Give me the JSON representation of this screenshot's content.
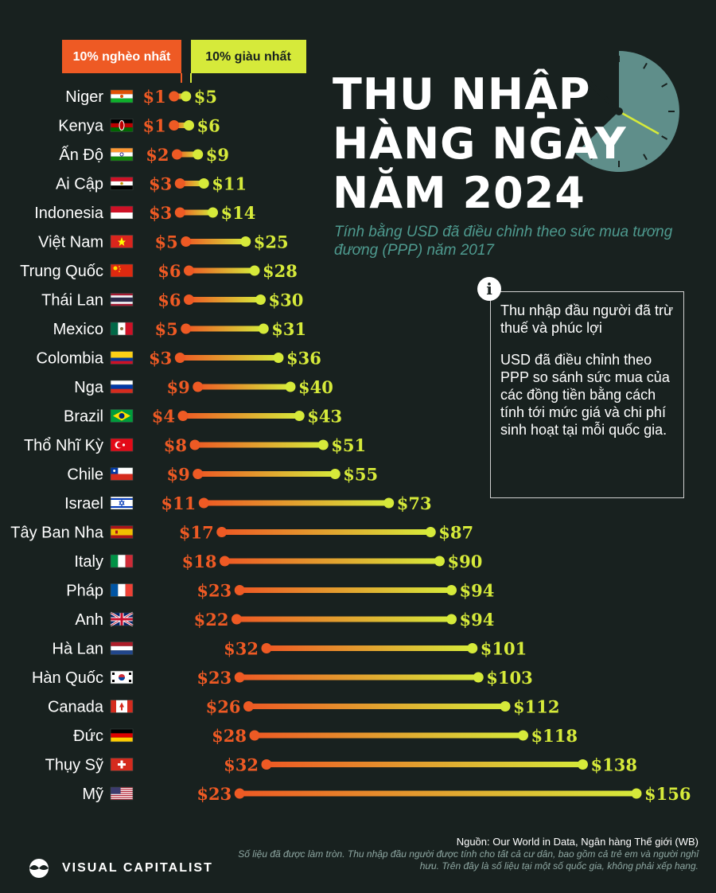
{
  "title_lines": [
    "THU NHẬP",
    "HÀNG NGÀY",
    "NĂM 2024"
  ],
  "subtitle": "Tính bằng USD đã điều chỉnh theo sức mua tương đương (PPP) năm 2017",
  "info_icon": "i",
  "info_lines": [
    "Thu nhập đầu người đã trừ thuế và phúc lợi",
    "USD đã điều chỉnh theo PPP so sánh sức mua của các đồng tiền bằng cách tính tới mức giá và chi phí sinh hoạt tại mỗi quốc gia."
  ],
  "source": "Nguồn: Our World in Data, Ngân hàng Thế giới (WB)",
  "note": "Số liệu đã được làm tròn. Thu nhập đầu người được tính cho tất cả cư dân, bao gồm cả trẻ em và người nghỉ hưu. Trên đây là số liệu tại một số quốc gia, không phải xếp hạng.",
  "brand": "VISUAL CAPITALIST",
  "colors": {
    "background": "#18211f",
    "poorest": "#ee5a24",
    "richest": "#d6ea3a",
    "title": "#ffffff",
    "subtitle": "#4e9a8f",
    "clock": "#5f8e8a"
  },
  "chart_data": {
    "type": "dumbbell",
    "legend": {
      "poorest": "10% nghèo nhất",
      "richest": "10% giàu nhất"
    },
    "unit_prefix": "$",
    "series": [
      {
        "name": "10% nghèo nhất",
        "color": "#ee5a24"
      },
      {
        "name": "10% giàu nhất",
        "color": "#d6ea3a"
      }
    ],
    "rows": [
      {
        "country": "Niger",
        "flag": "niger-flag",
        "poorest": 1,
        "richest": 5
      },
      {
        "country": "Kenya",
        "flag": "kenya-flag",
        "poorest": 1,
        "richest": 6
      },
      {
        "country": "Ấn Độ",
        "flag": "india-flag",
        "poorest": 2,
        "richest": 9
      },
      {
        "country": "Ai Cập",
        "flag": "egypt-flag",
        "poorest": 3,
        "richest": 11
      },
      {
        "country": "Indonesia",
        "flag": "indonesia-flag",
        "poorest": 3,
        "richest": 14
      },
      {
        "country": "Việt Nam",
        "flag": "vietnam-flag",
        "poorest": 5,
        "richest": 25
      },
      {
        "country": "Trung Quốc",
        "flag": "china-flag",
        "poorest": 6,
        "richest": 28
      },
      {
        "country": "Thái Lan",
        "flag": "thailand-flag",
        "poorest": 6,
        "richest": 30
      },
      {
        "country": "Mexico",
        "flag": "mexico-flag",
        "poorest": 5,
        "richest": 31
      },
      {
        "country": "Colombia",
        "flag": "colombia-flag",
        "poorest": 3,
        "richest": 36
      },
      {
        "country": "Nga",
        "flag": "russia-flag",
        "poorest": 9,
        "richest": 40
      },
      {
        "country": "Brazil",
        "flag": "brazil-flag",
        "poorest": 4,
        "richest": 43
      },
      {
        "country": "Thổ Nhĩ Kỳ",
        "flag": "turkey-flag",
        "poorest": 8,
        "richest": 51
      },
      {
        "country": "Chile",
        "flag": "chile-flag",
        "poorest": 9,
        "richest": 55
      },
      {
        "country": "Israel",
        "flag": "israel-flag",
        "poorest": 11,
        "richest": 73
      },
      {
        "country": "Tây Ban Nha",
        "flag": "spain-flag",
        "poorest": 17,
        "richest": 87
      },
      {
        "country": "Italy",
        "flag": "italy-flag",
        "poorest": 18,
        "richest": 90
      },
      {
        "country": "Pháp",
        "flag": "france-flag",
        "poorest": 23,
        "richest": 94
      },
      {
        "country": "Anh",
        "flag": "uk-flag",
        "poorest": 22,
        "richest": 94
      },
      {
        "country": "Hà Lan",
        "flag": "netherlands-flag",
        "poorest": 32,
        "richest": 101
      },
      {
        "country": "Hàn Quốc",
        "flag": "south-korea-flag",
        "poorest": 23,
        "richest": 103
      },
      {
        "country": "Canada",
        "flag": "canada-flag",
        "poorest": 26,
        "richest": 112
      },
      {
        "country": "Đức",
        "flag": "germany-flag",
        "poorest": 28,
        "richest": 118
      },
      {
        "country": "Thụy Sỹ",
        "flag": "switzerland-flag",
        "poorest": 32,
        "richest": 138
      },
      {
        "country": "Mỹ",
        "flag": "usa-flag",
        "poorest": 23,
        "richest": 156
      }
    ]
  }
}
